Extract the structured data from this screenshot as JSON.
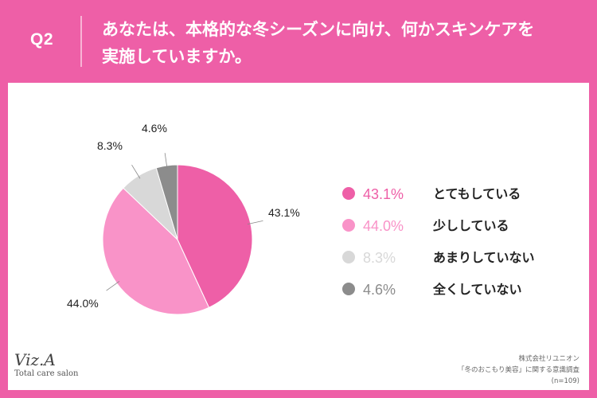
{
  "header": {
    "q_number": "Q2",
    "question_line1": "あなたは、本格的な冬シーズンに向け、何かスキンケアを",
    "question_line2": "実施していますか。"
  },
  "chart_data": {
    "type": "pie",
    "categories": [
      "とてもしている",
      "少ししている",
      "あまりしていない",
      "全くしていない"
    ],
    "values": [
      43.1,
      44.0,
      8.3,
      4.6
    ],
    "value_labels": [
      "43.1%",
      "44.0%",
      "8.3%",
      "4.6%"
    ],
    "colors": [
      "#ee5fa7",
      "#f993c8",
      "#d8d8d8",
      "#8c8c8c"
    ],
    "legend_position": "right",
    "start_angle": "12 o'clock, clockwise"
  },
  "footer": {
    "company": "株式会社リユニオン",
    "survey_title": "「冬のおこもり美容」に関する意識調査",
    "sample": "(n=109)",
    "logo_text": "Viz.A",
    "logo_subtext": "Total care salon"
  }
}
